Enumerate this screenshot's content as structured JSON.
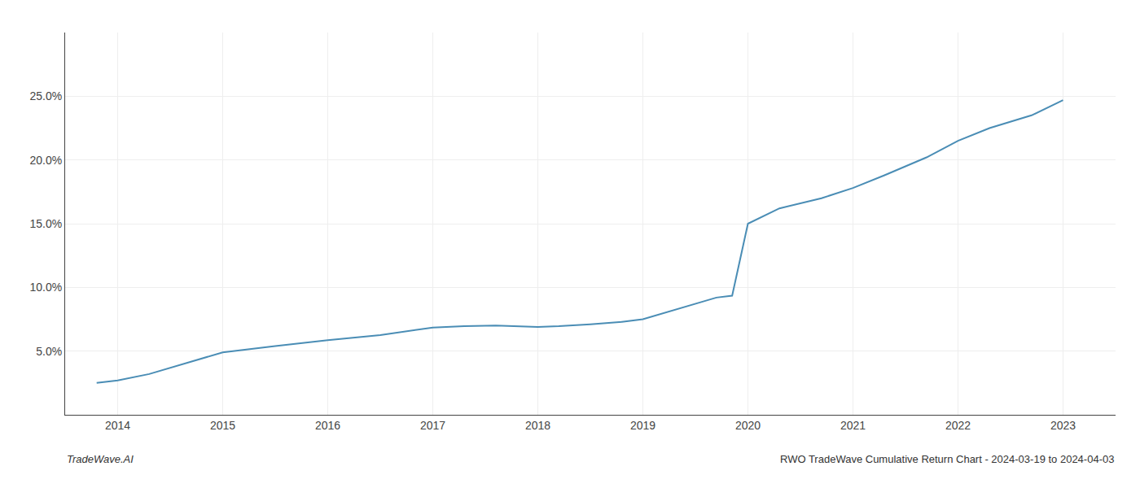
{
  "chart_data": {
    "type": "line",
    "x": [
      2013.8,
      2014.0,
      2014.3,
      2015.0,
      2015.5,
      2016.0,
      2016.5,
      2017.0,
      2017.3,
      2017.6,
      2018.0,
      2018.2,
      2018.5,
      2018.8,
      2019.0,
      2019.2,
      2019.5,
      2019.7,
      2019.85,
      2020.0,
      2020.3,
      2020.7,
      2021.0,
      2021.3,
      2021.7,
      2022.0,
      2022.3,
      2022.7,
      2023.0
    ],
    "values": [
      2.5,
      2.7,
      3.2,
      4.9,
      5.4,
      5.85,
      6.25,
      6.85,
      6.95,
      7.0,
      6.9,
      6.95,
      7.1,
      7.3,
      7.5,
      8.0,
      8.7,
      9.2,
      9.35,
      15.0,
      16.2,
      17.0,
      17.8,
      18.8,
      20.2,
      21.5,
      22.5,
      23.5,
      24.7
    ],
    "color": "#4a8db5",
    "xlim": [
      2013.5,
      2023.5
    ],
    "xticks": [
      2014,
      2015,
      2016,
      2017,
      2018,
      2019,
      2020,
      2021,
      2022,
      2023
    ],
    "ylim": [
      0,
      30
    ],
    "yticks": [
      {
        "value": 5.0,
        "label": "5.0%"
      },
      {
        "value": 10.0,
        "label": "10.0%"
      },
      {
        "value": 15.0,
        "label": "15.0%"
      },
      {
        "value": 20.0,
        "label": "20.0%"
      },
      {
        "value": 25.0,
        "label": "25.0%"
      }
    ],
    "grid": true,
    "annotations": [
      "TradeWave.AI",
      "RWO TradeWave Cumulative Return Chart - 2024-03-19 to 2024-04-03"
    ]
  }
}
